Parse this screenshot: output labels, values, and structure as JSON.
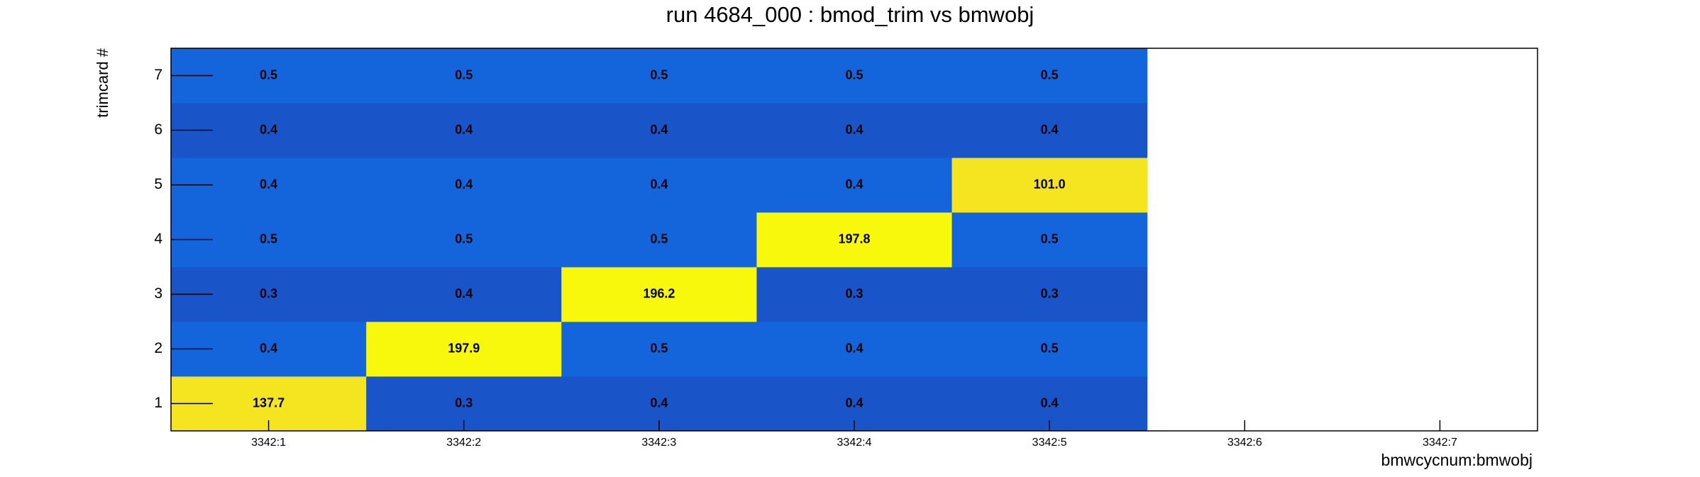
{
  "chart_data": {
    "type": "heatmap",
    "title": "run 4684_000 : bmod_trim vs bmwobj",
    "x_label": "bmwcycnum:bmwobj",
    "y_label": "trimcard #",
    "x_categories": [
      "3342:1",
      "3342:2",
      "3342:3",
      "3342:4",
      "3342:5",
      "3342:6",
      "3342:7"
    ],
    "y_categories": [
      "1",
      "2",
      "3",
      "4",
      "5",
      "6",
      "7"
    ],
    "values": [
      [
        137.7,
        0.3,
        0.4,
        0.4,
        0.4,
        null,
        null
      ],
      [
        0.4,
        197.9,
        0.5,
        0.4,
        0.5,
        null,
        null
      ],
      [
        0.3,
        0.4,
        196.2,
        0.3,
        0.3,
        null,
        null
      ],
      [
        0.5,
        0.5,
        0.5,
        197.8,
        0.5,
        null,
        null
      ],
      [
        0.4,
        0.4,
        0.4,
        0.4,
        101,
        null,
        null
      ],
      [
        0.4,
        0.4,
        0.4,
        0.4,
        0.4,
        null,
        null
      ],
      [
        0.5,
        0.5,
        0.5,
        0.5,
        0.5,
        null,
        null
      ]
    ],
    "value_labels": [
      [
        "137.7",
        "0.3",
        "0.4",
        "0.4",
        "0.4",
        null,
        null
      ],
      [
        "0.4",
        "197.9",
        "0.5",
        "0.4",
        "0.5",
        null,
        null
      ],
      [
        "0.3",
        "0.4",
        "196.2",
        "0.3",
        "0.3",
        null,
        null
      ],
      [
        "0.5",
        "0.5",
        "0.5",
        "197.8",
        "0.5",
        null,
        null
      ],
      [
        "0.4",
        "0.4",
        "0.4",
        "0.4",
        "101.0",
        null,
        null
      ],
      [
        "0.4",
        "0.4",
        "0.4",
        "0.4",
        "0.4",
        null,
        null
      ],
      [
        "0.5",
        "0.5",
        "0.5",
        "0.5",
        "0.5",
        null,
        null
      ]
    ],
    "cell_colors": [
      [
        "#f5e420",
        "#1a54c9",
        "#1a54c9",
        "#1a54c9",
        "#1a54c9",
        null,
        null
      ],
      [
        "#1464dc",
        "#f8f80c",
        "#1464dc",
        "#1464dc",
        "#1464dc",
        null,
        null
      ],
      [
        "#1a54c9",
        "#1a54c9",
        "#f8f80c",
        "#1a54c9",
        "#1a54c9",
        null,
        null
      ],
      [
        "#1464dc",
        "#1464dc",
        "#1464dc",
        "#f8f80c",
        "#1464dc",
        null,
        null
      ],
      [
        "#1464dc",
        "#1464dc",
        "#1464dc",
        "#1464dc",
        "#f5e420",
        null,
        null
      ],
      [
        "#1a54c9",
        "#1a54c9",
        "#1a54c9",
        "#1a54c9",
        "#1a54c9",
        null,
        null
      ],
      [
        "#1464dc",
        "#1464dc",
        "#1464dc",
        "#1464dc",
        "#1464dc",
        null,
        null
      ]
    ]
  }
}
